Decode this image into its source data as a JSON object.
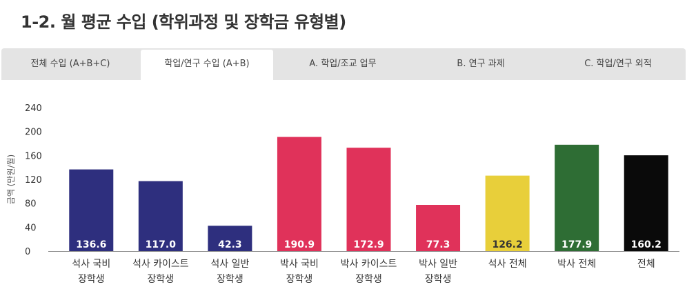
{
  "page": {
    "title": "1-2. 월 평균 수입 (학위과정 및 장학금 유형별)"
  },
  "tabs": [
    {
      "label": "전체 수입 (A+B+C)",
      "active": false
    },
    {
      "label": "학업/연구 수입 (A+B)",
      "active": true
    },
    {
      "label": "A. 학업/조교 업무",
      "active": false
    },
    {
      "label": "B. 연구 과제",
      "active": false
    },
    {
      "label": "C. 학업/연구 외적",
      "active": false
    }
  ],
  "chart_data": {
    "type": "bar",
    "title": "",
    "xlabel": "",
    "ylabel": "금액 (만원/월)",
    "ylim": [
      0,
      240
    ],
    "yticks": [
      0,
      40,
      80,
      120,
      160,
      200,
      240
    ],
    "grid": false,
    "categories": [
      [
        "석사 국비",
        "장학생"
      ],
      [
        "석사 카이스트",
        "장학생"
      ],
      [
        "석사 일반",
        "장학생"
      ],
      [
        "박사 국비",
        "장학생"
      ],
      [
        "박사 카이스트",
        "장학생"
      ],
      [
        "박사 일반",
        "장학생"
      ],
      [
        "석사 전체"
      ],
      [
        "박사 전체"
      ],
      [
        "전체"
      ]
    ],
    "values": [
      136.6,
      117.0,
      42.3,
      190.9,
      172.9,
      77.3,
      126.2,
      177.9,
      160.2
    ],
    "value_labels": [
      "136.6",
      "117.0",
      "42.3",
      "190.9",
      "172.9",
      "77.3",
      "126.2",
      "177.9",
      "160.2"
    ],
    "colors": [
      "#2e2f7e",
      "#2e2f7e",
      "#2e2f7e",
      "#e0325a",
      "#e0325a",
      "#e0325a",
      "#e8cf3a",
      "#2e6d34",
      "#0a0a0a"
    ],
    "label_colors": [
      "#ffffff",
      "#ffffff",
      "#ffffff",
      "#ffffff",
      "#ffffff",
      "#ffffff",
      "#333333",
      "#ffffff",
      "#ffffff"
    ]
  }
}
